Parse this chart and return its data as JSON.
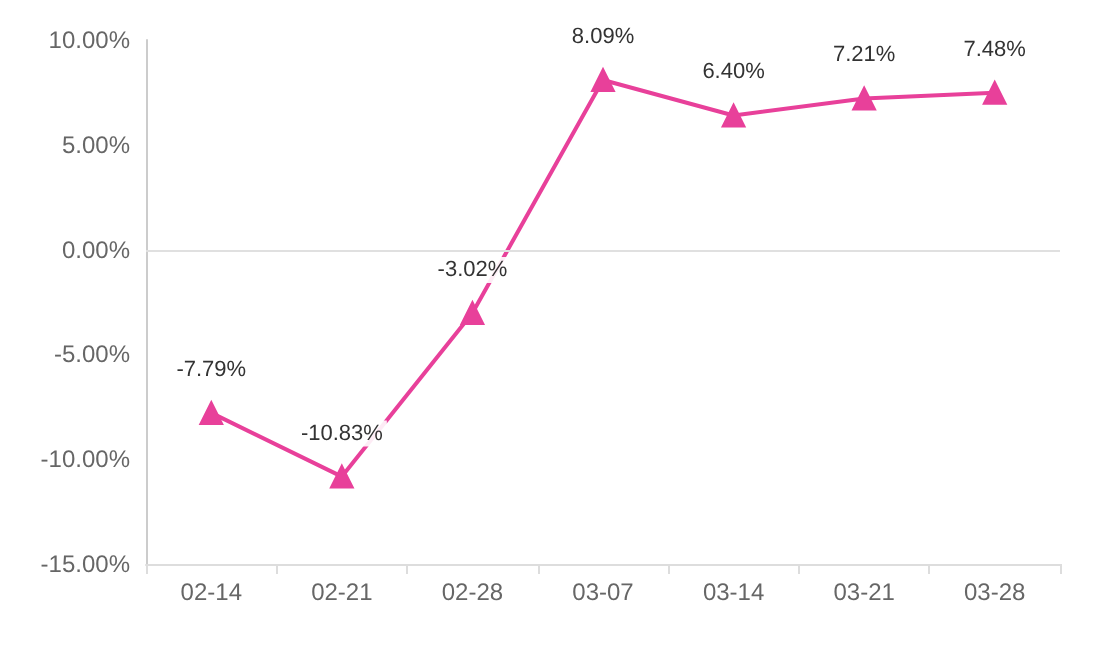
{
  "chart_data": {
    "type": "line",
    "categories": [
      "02-14",
      "02-21",
      "02-28",
      "03-07",
      "03-14",
      "03-21",
      "03-28"
    ],
    "series": [
      {
        "color": "#e8409a",
        "values": [
          -7.79,
          -10.83,
          -3.02,
          8.09,
          6.4,
          7.21,
          7.48
        ],
        "value_labels": [
          "-7.79%",
          "-10.83%",
          "-3.02%",
          "8.09%",
          "6.40%",
          "7.21%",
          "7.48%"
        ]
      }
    ],
    "ylim": [
      -15,
      10
    ],
    "yticks": [
      {
        "value": -15,
        "label": "-15.00%"
      },
      {
        "value": -10,
        "label": "-10.00%"
      },
      {
        "value": -5,
        "label": "-5.00%"
      },
      {
        "value": 0,
        "label": "0.00%"
      },
      {
        "value": 5,
        "label": "5.00%"
      },
      {
        "value": 10,
        "label": "10.00%"
      }
    ],
    "ref_lines": [
      {
        "axis": "y",
        "value": 0,
        "label": null,
        "color": "#e0e0e0"
      }
    ],
    "grid": false,
    "marker": "triangle",
    "line_style": "solid"
  }
}
